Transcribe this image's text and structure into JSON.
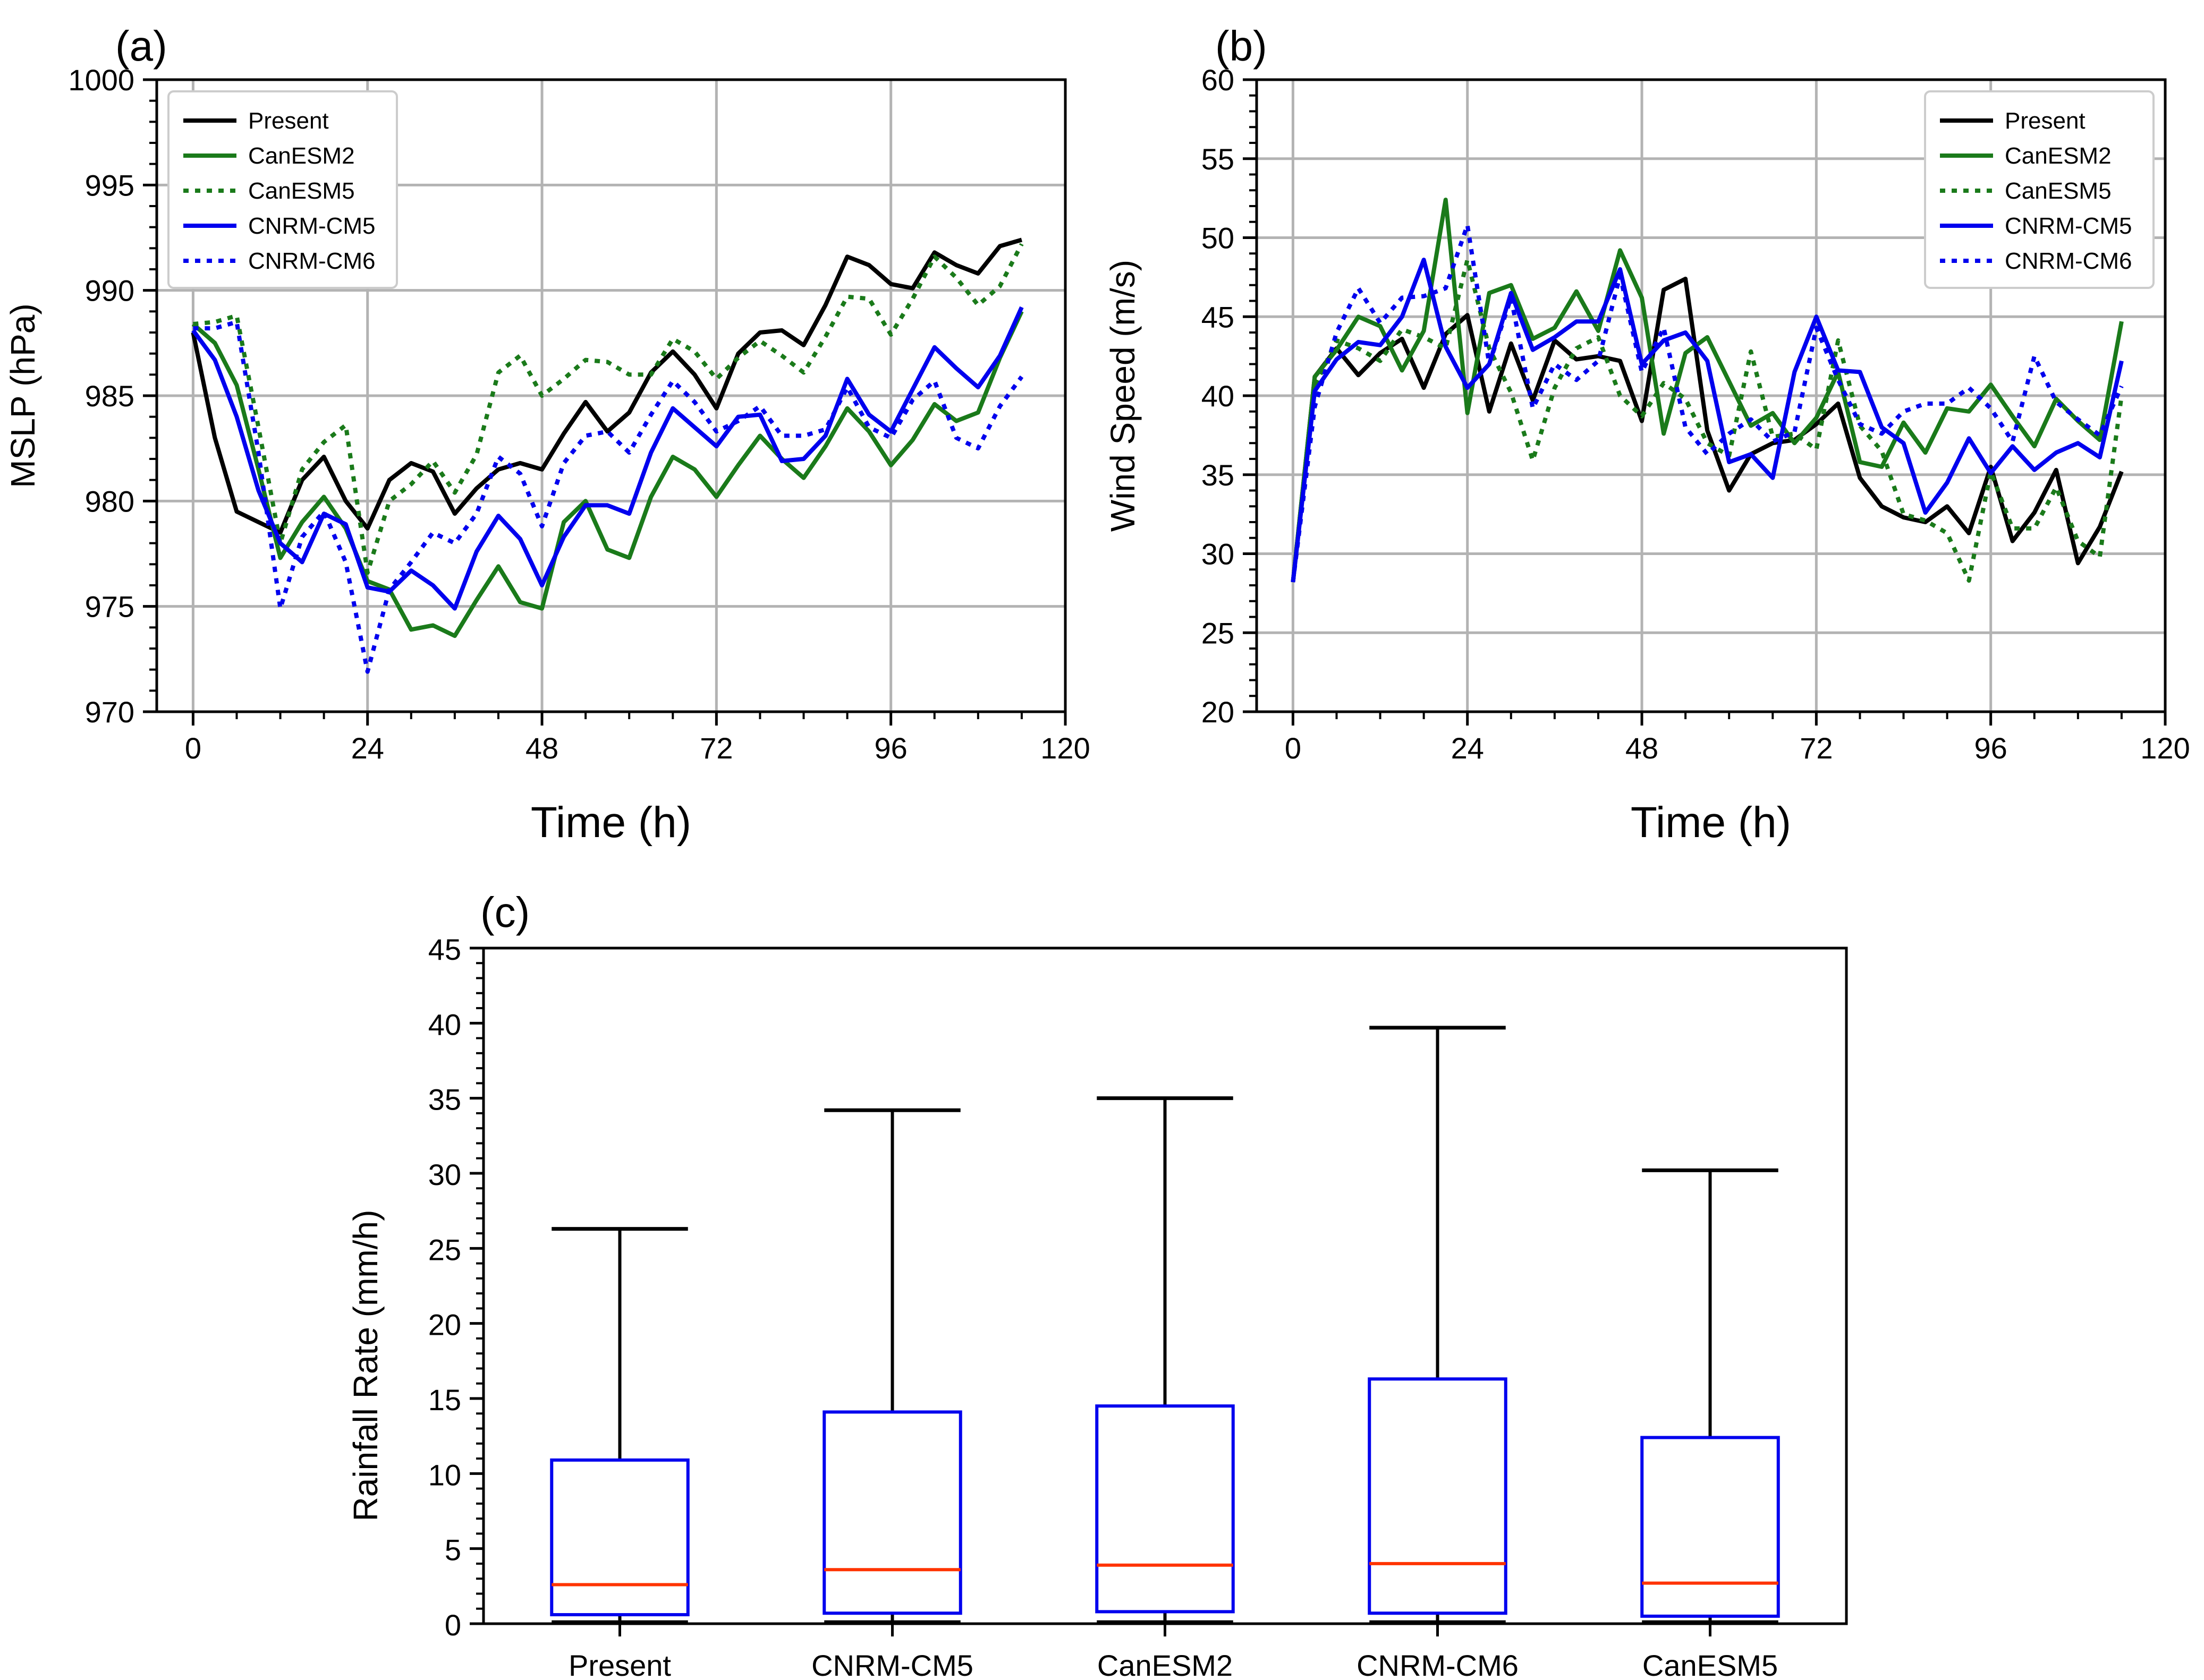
{
  "chart_data": [
    {
      "panel": "(a)",
      "type": "line",
      "xlabel": "Time (h)",
      "ylabel": "MSLP  (hPa)",
      "xlim": [
        -5,
        120
      ],
      "ylim": [
        970,
        1000
      ],
      "xticks": [
        0,
        24,
        48,
        72,
        96,
        120
      ],
      "yticks": [
        970,
        975,
        980,
        985,
        990,
        995,
        1000
      ],
      "grid": true,
      "legend_position": "top-left",
      "x": [
        0,
        3,
        6,
        9,
        12,
        15,
        18,
        21,
        24,
        27,
        30,
        33,
        36,
        39,
        42,
        45,
        48,
        51,
        54,
        57,
        60,
        63,
        66,
        69,
        72,
        75,
        78,
        81,
        84,
        87,
        90,
        93,
        96,
        99,
        102,
        105,
        108,
        111,
        114
      ],
      "series": [
        {
          "name": "Present",
          "color": "#000000",
          "style": "solid",
          "values": [
            988.0,
            983.0,
            979.5,
            979.0,
            978.5,
            981.0,
            982.1,
            980.0,
            978.7,
            981.0,
            981.8,
            981.4,
            979.4,
            980.6,
            981.5,
            981.8,
            981.5,
            983.2,
            984.7,
            983.3,
            984.2,
            986.1,
            987.1,
            986.0,
            984.4,
            987.0,
            988.0,
            988.1,
            987.4,
            989.3,
            991.6,
            991.2,
            990.3,
            990.1,
            991.8,
            991.2,
            990.8,
            992.1,
            992.4
          ]
        },
        {
          "name": "CanESM2",
          "color": "#1a7a1a",
          "style": "solid",
          "values": [
            988.4,
            987.5,
            985.5,
            981.5,
            977.3,
            979.0,
            980.2,
            978.7,
            976.2,
            975.8,
            973.9,
            974.1,
            973.6,
            975.3,
            976.9,
            975.2,
            974.9,
            979.0,
            980.0,
            977.7,
            977.3,
            980.2,
            982.1,
            981.5,
            980.2,
            981.7,
            983.1,
            982.0,
            981.1,
            982.6,
            984.4,
            983.3,
            981.7,
            982.9,
            984.6,
            983.8,
            984.2,
            986.8,
            989.0
          ]
        },
        {
          "name": "CanESM5",
          "color": "#1a7a1a",
          "style": "dotted",
          "values": [
            988.4,
            988.5,
            988.8,
            983.5,
            978.0,
            981.5,
            982.8,
            983.6,
            976.6,
            980.0,
            980.8,
            981.9,
            980.4,
            982.2,
            986.1,
            986.9,
            985.0,
            985.8,
            986.7,
            986.6,
            986.0,
            986.0,
            987.7,
            987.1,
            985.8,
            986.8,
            987.6,
            986.9,
            986.1,
            987.8,
            989.7,
            989.6,
            987.9,
            989.6,
            991.6,
            990.6,
            989.3,
            990.2,
            992.2
          ]
        },
        {
          "name": "CNRM-CM5",
          "color": "#0000ee",
          "style": "solid",
          "values": [
            988.1,
            986.7,
            984.0,
            980.5,
            978.0,
            977.1,
            979.4,
            978.9,
            975.9,
            975.7,
            976.7,
            976.0,
            974.9,
            977.6,
            979.3,
            978.2,
            976.0,
            978.3,
            979.8,
            979.8,
            979.4,
            982.3,
            984.4,
            983.5,
            982.6,
            984.0,
            984.1,
            981.9,
            982.0,
            983.1,
            985.8,
            984.1,
            983.3,
            985.3,
            987.3,
            986.3,
            985.4,
            986.9,
            989.2
          ]
        },
        {
          "name": "CNRM-CM6",
          "color": "#0000ee",
          "style": "dotted",
          "values": [
            988.2,
            988.2,
            988.5,
            982.3,
            974.9,
            978.3,
            979.5,
            977.1,
            971.9,
            975.8,
            977.1,
            978.5,
            978.0,
            979.4,
            982.1,
            981.3,
            978.8,
            981.8,
            983.1,
            983.3,
            982.3,
            984.1,
            985.7,
            984.7,
            983.3,
            983.8,
            984.5,
            983.1,
            983.1,
            983.4,
            985.4,
            983.5,
            983.0,
            984.8,
            985.7,
            983.0,
            982.5,
            984.5,
            985.9
          ]
        }
      ]
    },
    {
      "panel": "(b)",
      "type": "line",
      "xlabel": "Time (h)",
      "ylabel": "Wind Speed  (m/s)",
      "xlim": [
        -5,
        120
      ],
      "ylim": [
        20,
        60
      ],
      "xticks": [
        0,
        24,
        48,
        72,
        96,
        120
      ],
      "yticks": [
        20,
        25,
        30,
        35,
        40,
        45,
        50,
        55,
        60
      ],
      "grid": true,
      "legend_position": "top-right",
      "x": [
        0,
        3,
        6,
        9,
        12,
        15,
        18,
        21,
        24,
        27,
        30,
        33,
        36,
        39,
        42,
        45,
        48,
        51,
        54,
        57,
        60,
        63,
        66,
        69,
        72,
        75,
        78,
        81,
        84,
        87,
        90,
        93,
        96,
        99,
        102,
        105,
        108,
        111,
        114
      ],
      "series": [
        {
          "name": "Present",
          "color": "#000000",
          "style": "solid",
          "values": [
            28.2,
            41.2,
            43.0,
            41.3,
            42.7,
            43.6,
            40.5,
            43.9,
            45.1,
            39.0,
            43.3,
            39.7,
            43.5,
            42.3,
            42.5,
            42.2,
            38.4,
            46.7,
            47.4,
            37.8,
            34.0,
            36.3,
            37.0,
            37.2,
            38.2,
            39.5,
            34.8,
            33.0,
            32.3,
            32.0,
            33.0,
            31.3,
            35.5,
            30.8,
            32.6,
            35.3,
            29.4,
            31.7,
            35.2
          ]
        },
        {
          "name": "CanESM2",
          "color": "#1a7a1a",
          "style": "solid",
          "values": [
            28.2,
            41.2,
            42.9,
            45.0,
            44.4,
            41.6,
            44.1,
            52.4,
            38.9,
            46.5,
            47.0,
            43.6,
            44.3,
            46.6,
            44.1,
            49.2,
            46.2,
            37.6,
            42.7,
            43.7,
            40.9,
            38.1,
            38.9,
            37.0,
            38.6,
            41.5,
            35.8,
            35.5,
            38.3,
            36.4,
            39.2,
            39.0,
            40.7,
            38.7,
            36.8,
            39.8,
            38.4,
            37.2,
            44.7
          ]
        },
        {
          "name": "CanESM5",
          "color": "#1a7a1a",
          "style": "dotted",
          "values": [
            28.2,
            40.6,
            43.5,
            43.0,
            42.2,
            44.2,
            43.7,
            43.0,
            48.6,
            43.0,
            40.2,
            35.9,
            40.5,
            43.0,
            43.7,
            40.0,
            38.7,
            40.8,
            39.8,
            37.0,
            36.2,
            42.8,
            37.4,
            37.6,
            36.6,
            43.5,
            38.1,
            36.5,
            32.5,
            32.1,
            31.3,
            28.3,
            35.2,
            31.6,
            31.6,
            34.2,
            30.8,
            29.8,
            40.0
          ]
        },
        {
          "name": "CNRM-CM5",
          "color": "#0000ee",
          "style": "solid",
          "values": [
            28.2,
            40.3,
            42.3,
            43.4,
            43.2,
            45.0,
            48.6,
            43.1,
            40.5,
            42.0,
            46.5,
            42.9,
            43.7,
            44.7,
            44.7,
            48.0,
            42.0,
            43.5,
            44.0,
            42.2,
            35.8,
            36.3,
            34.8,
            41.5,
            45.0,
            41.6,
            41.5,
            38.0,
            37.0,
            32.6,
            34.5,
            37.3,
            35.1,
            36.8,
            35.3,
            36.4,
            37.0,
            36.1,
            42.2
          ]
        },
        {
          "name": "CNRM-CM6",
          "color": "#0000ee",
          "style": "dotted",
          "values": [
            28.2,
            39.3,
            44.0,
            46.8,
            44.6,
            46.2,
            46.3,
            46.8,
            50.8,
            42.0,
            46.2,
            39.2,
            42.0,
            41.0,
            42.2,
            47.6,
            41.5,
            44.3,
            38.0,
            36.3,
            37.6,
            38.5,
            37.1,
            37.7,
            44.3,
            41.0,
            38.2,
            37.6,
            39.0,
            39.5,
            39.5,
            40.5,
            39.2,
            37.1,
            42.5,
            39.6,
            38.5,
            37.5,
            40.6
          ]
        }
      ]
    },
    {
      "panel": "(c)",
      "type": "box",
      "ylabel": "Rainfall Rate (mm/h)",
      "ylim": [
        0,
        45
      ],
      "yticks": [
        0,
        5,
        10,
        15,
        20,
        25,
        30,
        35,
        40,
        45
      ],
      "categories": [
        "Present",
        "CNRM-CM5",
        "CanESM2",
        "CNRM-CM6",
        "CanESM5"
      ],
      "boxes": [
        {
          "label": "Present",
          "whisker_low": 0.1,
          "q1": 0.6,
          "median": 2.6,
          "q3": 10.9,
          "whisker_high": 26.3
        },
        {
          "label": "CNRM-CM5",
          "whisker_low": 0.1,
          "q1": 0.7,
          "median": 3.6,
          "q3": 14.1,
          "whisker_high": 34.2
        },
        {
          "label": "CanESM2",
          "whisker_low": 0.1,
          "q1": 0.8,
          "median": 3.9,
          "q3": 14.5,
          "whisker_high": 35.0
        },
        {
          "label": "CNRM-CM6",
          "whisker_low": 0.1,
          "q1": 0.7,
          "median": 4.0,
          "q3": 16.3,
          "whisker_high": 39.7
        },
        {
          "label": "CanESM5",
          "whisker_low": 0.1,
          "q1": 0.5,
          "median": 2.7,
          "q3": 12.4,
          "whisker_high": 30.2
        }
      ],
      "colors": {
        "box": "#0000ee",
        "median": "#ff3300",
        "whisker": "#000000"
      }
    }
  ]
}
